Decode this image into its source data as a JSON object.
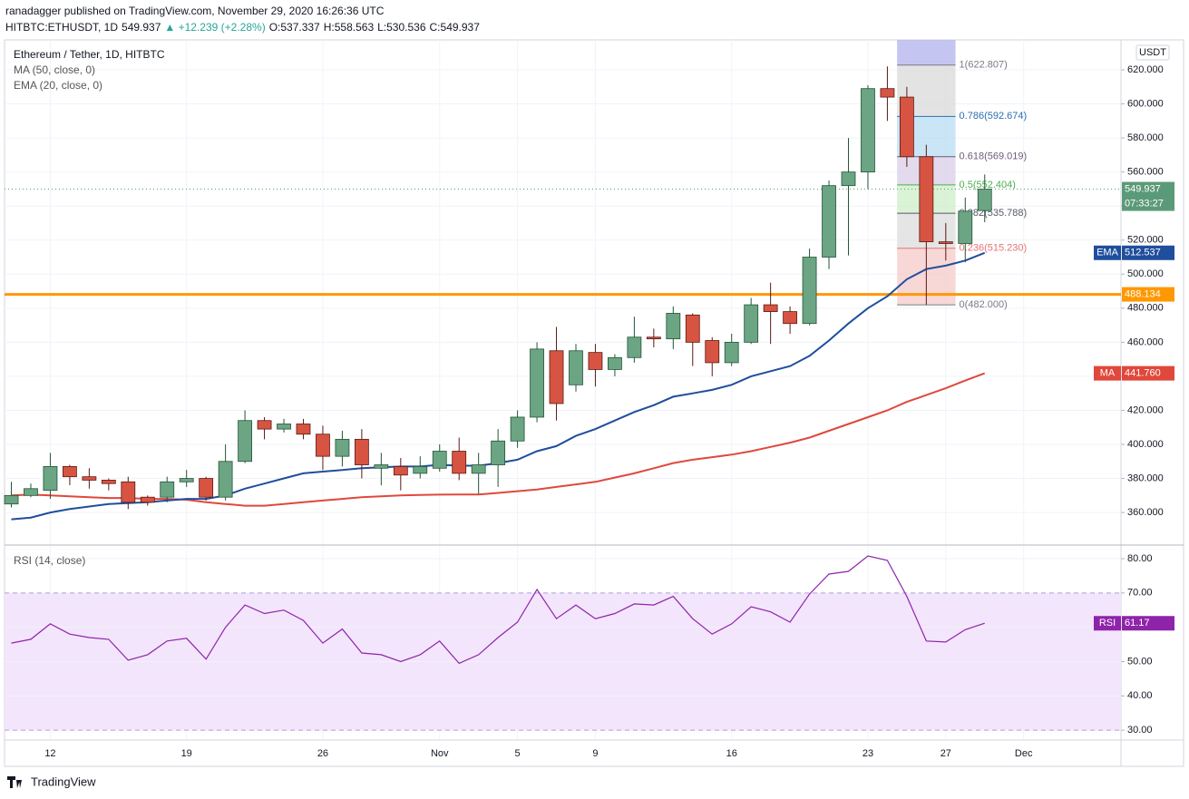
{
  "header": {
    "publisher": "ranadagger published on TradingView.com, November 29, 2020 16:26:36 UTC",
    "line2": [
      {
        "text": "HITBTC:ETHUSDT, 1D",
        "color": "#131722"
      },
      {
        "text": "549.937",
        "color": "#131722"
      },
      {
        "text": "▲ +12.239 (+2.28%)",
        "color": "#26a69a"
      },
      {
        "text": "O:537.337",
        "color": "#131722"
      },
      {
        "text": "H:558.563",
        "color": "#131722"
      },
      {
        "text": "L:530.536",
        "color": "#131722"
      },
      {
        "text": "C:549.937",
        "color": "#131722"
      }
    ]
  },
  "footer": {
    "brand": "TradingView"
  },
  "chart_data": [
    {
      "type": "candlestick",
      "title": "Ethereum / Tether, 1D, HITBTC",
      "currency": "USDT",
      "open": [
        365,
        370,
        373,
        387,
        381,
        379,
        378,
        369,
        369,
        378,
        380,
        369,
        390,
        414,
        409,
        412,
        406,
        393,
        403,
        386,
        387,
        383,
        386,
        396,
        383,
        388,
        402,
        416,
        455,
        435,
        454,
        444,
        451,
        463,
        462,
        476,
        461,
        448,
        460,
        482,
        478,
        471,
        510,
        552,
        560,
        609,
        604,
        569,
        519,
        518,
        537.337
      ],
      "high": [
        378,
        377,
        395,
        388,
        386,
        380,
        381,
        370,
        381,
        385,
        381,
        400,
        420,
        416,
        415,
        415,
        411,
        408,
        409,
        395,
        392,
        393,
        400,
        404,
        395,
        409,
        420,
        460,
        469,
        459,
        459,
        453,
        475,
        468,
        481,
        477,
        463,
        465,
        486,
        495,
        481,
        515,
        555,
        580,
        611,
        622,
        610,
        576,
        530,
        545,
        558.563
      ],
      "low": [
        363,
        369,
        368,
        376,
        374,
        373,
        362,
        364,
        366,
        375,
        367,
        367,
        389,
        403,
        407,
        403,
        385,
        387,
        380,
        376,
        373,
        380,
        384,
        379,
        371,
        375,
        398,
        413,
        414,
        431,
        434,
        440,
        448,
        457,
        456,
        446,
        440,
        446,
        459,
        459,
        465,
        470,
        503,
        511,
        550,
        590,
        563,
        482,
        508,
        507,
        530.536
      ],
      "close": [
        370,
        374,
        387,
        381,
        379,
        377,
        366,
        366,
        378,
        380,
        369,
        390,
        414,
        409,
        412,
        406,
        393,
        403,
        388,
        388,
        382,
        387,
        396,
        383,
        388,
        402,
        416,
        456,
        424,
        455,
        444,
        451,
        463,
        462,
        477,
        460,
        448,
        460,
        482,
        478,
        471,
        510,
        552,
        560,
        609,
        604,
        569,
        519,
        518,
        537,
        549.937
      ],
      "up_color": "#6ba583",
      "down_color": "#d75442",
      "series": [
        {
          "name": "MA (50, close, 0)",
          "tag": "MA",
          "color": "#e0483b",
          "value_label": "441.760",
          "values": [
            370,
            370.5,
            370,
            369.5,
            369,
            368.5,
            368.5,
            368,
            368,
            367.5,
            366,
            365,
            364,
            364,
            365,
            366,
            367,
            368,
            369,
            369.5,
            370,
            370.3,
            370.5,
            370.6,
            370.6,
            371.5,
            372.5,
            373.5,
            375,
            376.5,
            378,
            380.5,
            383,
            386,
            389,
            391,
            392.5,
            394,
            396,
            398.5,
            401,
            404,
            408,
            412,
            416,
            420,
            425,
            429,
            433,
            437.5,
            441.76
          ]
        },
        {
          "name": "EMA (20, close, 0)",
          "tag": "EMA",
          "color": "#1f4e9c",
          "value_label": "512.537",
          "values": [
            356,
            357,
            360,
            362,
            363.5,
            365,
            365.5,
            366,
            367,
            368,
            368,
            370,
            374,
            377,
            380,
            383,
            384,
            385,
            386,
            386.5,
            387,
            387,
            388,
            387.5,
            387.5,
            389,
            391,
            396,
            399,
            405,
            409,
            414,
            419,
            423,
            428,
            430,
            432,
            435,
            440,
            443,
            446,
            452,
            461,
            471,
            480,
            487,
            497,
            503,
            505,
            508,
            512.537
          ]
        }
      ],
      "last_price": {
        "value": 549.937,
        "label": "549.937",
        "countdown": "07:33:27",
        "color": "#5b9a78"
      },
      "hline": {
        "value": 488.134,
        "label": "488.134",
        "color": "#ff9800"
      },
      "fib": [
        {
          "value": 622.807,
          "label": "1(622.807)",
          "color": "#787b86",
          "zone_color": "#d9d9d9"
        },
        {
          "value": 592.674,
          "label": "0.786(592.674)",
          "color": "#2a6fb0",
          "zone_color": "#b8dcf2"
        },
        {
          "value": 569.019,
          "label": "0.618(569.019)",
          "color": "#6c5b7b",
          "zone_color": "#d9cde8"
        },
        {
          "value": 552.404,
          "label": "0.5(552.404)",
          "color": "#4caf50",
          "zone_color": "#cdeec8"
        },
        {
          "value": 535.788,
          "label": "0.382(535.788)",
          "color": "#555a66",
          "zone_color": "#dcdcdc"
        },
        {
          "value": 515.23,
          "label": "0.236(515.230)",
          "color": "#e57373",
          "zone_color": "#f6caca"
        },
        {
          "value": 482.0,
          "label": "0(482.000)",
          "color": "#787b86"
        }
      ],
      "ylim": [
        341.4,
        637.6
      ],
      "yticks": [
        {
          "value": 360,
          "label": "360.000"
        },
        {
          "value": 380,
          "label": "380.000"
        },
        {
          "value": 400,
          "label": "400.000"
        },
        {
          "value": 420,
          "label": "420.000"
        },
        {
          "value": 440,
          "label": "440.000"
        },
        {
          "value": 460,
          "label": "460.000"
        },
        {
          "value": 480,
          "label": "480.000"
        },
        {
          "value": 500,
          "label": "500.000"
        },
        {
          "value": 520,
          "label": "520.000"
        },
        {
          "value": 540,
          "label": "540.000"
        },
        {
          "value": 560,
          "label": "560.000"
        },
        {
          "value": 580,
          "label": "580.000"
        },
        {
          "value": 600,
          "label": "600.000"
        },
        {
          "value": 620,
          "label": "620.000"
        }
      ],
      "xlim": [
        -0.35,
        57.0
      ],
      "xticks": [
        {
          "value": 2,
          "label": "12"
        },
        {
          "value": 9,
          "label": "19"
        },
        {
          "value": 16,
          "label": "26"
        },
        {
          "value": 22,
          "label": "Nov"
        },
        {
          "value": 26,
          "label": "5"
        },
        {
          "value": 30,
          "label": "9"
        },
        {
          "value": 37,
          "label": "16"
        },
        {
          "value": 44,
          "label": "23"
        },
        {
          "value": 48,
          "label": "27"
        },
        {
          "value": 52,
          "label": "Dec"
        }
      ],
      "grid": true
    },
    {
      "type": "line",
      "title": "RSI (14, close)",
      "series": [
        {
          "name": "RSI (14, close)",
          "tag": "RSI",
          "color": "#8e24aa",
          "value_label": "61.17",
          "values": [
            55.4,
            56.5,
            61,
            58,
            57,
            56.5,
            50.4,
            52,
            56,
            56.8,
            50.7,
            60,
            66.5,
            64,
            65,
            62,
            55.4,
            59.5,
            52.5,
            52,
            50,
            52,
            56,
            49.5,
            52,
            57,
            61.5,
            71,
            62.5,
            66.5,
            62.5,
            64,
            66.8,
            66.5,
            69,
            62.5,
            58,
            61,
            66,
            64.5,
            61.5,
            69.7,
            75.5,
            76.3,
            80.8,
            79.5,
            69,
            56,
            55.7,
            59.3,
            61.17
          ]
        }
      ],
      "band": [
        30,
        70
      ],
      "band_color": "#f3e5fb",
      "ylim": [
        27.4,
        83.7
      ],
      "yticks": [
        {
          "value": 30,
          "label": "30.00"
        },
        {
          "value": 40,
          "label": "40.00"
        },
        {
          "value": 50,
          "label": "50.00"
        },
        {
          "value": 60,
          "label": "60.00"
        },
        {
          "value": 70,
          "label": "70.00"
        },
        {
          "value": 80,
          "label": "80.00"
        }
      ],
      "grid": true
    }
  ]
}
